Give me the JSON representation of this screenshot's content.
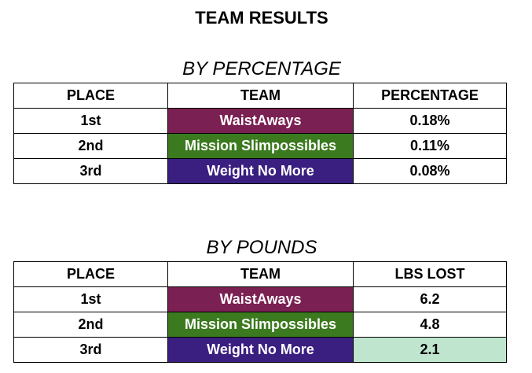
{
  "title": "TEAM RESULTS",
  "sections": [
    {
      "title": "BY PERCENTAGE",
      "headers": [
        "PLACE",
        "TEAM",
        "PERCENTAGE"
      ],
      "rows": [
        {
          "place": "1st",
          "team": "WaistAways",
          "team_color": "#7b2052",
          "value": "0.18%",
          "value_color": "#ffffff"
        },
        {
          "place": "2nd",
          "team": "Mission Slimpossibles",
          "team_color": "#3b7a1e",
          "value": "0.11%",
          "value_color": "#ffffff"
        },
        {
          "place": "3rd",
          "team": "Weight No More",
          "team_color": "#3a1f80",
          "value": "0.08%",
          "value_color": "#ffffff"
        }
      ]
    },
    {
      "title": "BY POUNDS",
      "headers": [
        "PLACE",
        "TEAM",
        "LBS LOST"
      ],
      "rows": [
        {
          "place": "1st",
          "team": "WaistAways",
          "team_color": "#7b2052",
          "value": "6.2",
          "value_color": "#ffffff"
        },
        {
          "place": "2nd",
          "team": "Mission Slimpossibles",
          "team_color": "#3b7a1e",
          "value": "4.8",
          "value_color": "#ffffff"
        },
        {
          "place": "3rd",
          "team": "Weight No More",
          "team_color": "#3a1f80",
          "value": "2.1",
          "value_color": "#bfe5cf"
        }
      ]
    }
  ]
}
